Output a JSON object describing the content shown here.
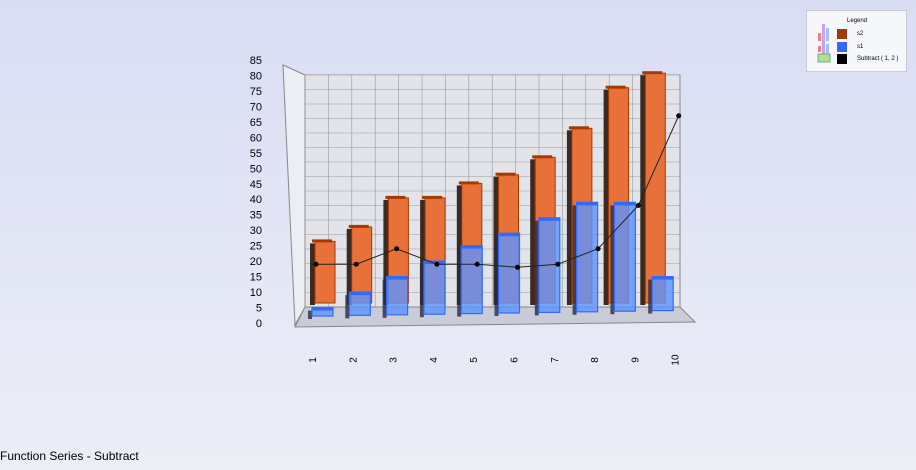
{
  "footer": "Function Series - Subtract",
  "legend": {
    "title": "Legend",
    "items": [
      {
        "label": "s2",
        "color": "#a33a00"
      },
      {
        "label": "s1",
        "color": "#2f6bff"
      },
      {
        "label": "Subtract ( 1, 2 )",
        "color": "#000000"
      }
    ]
  },
  "chart_data": {
    "type": "bar",
    "categories": [
      "1",
      "2",
      "3",
      "4",
      "5",
      "6",
      "7",
      "8",
      "9",
      "10"
    ],
    "yticks": [
      "0",
      "5",
      "10",
      "15",
      "20",
      "25",
      "30",
      "35",
      "40",
      "45",
      "50",
      "55",
      "60",
      "65",
      "70",
      "75",
      "80",
      "85"
    ],
    "ylim": [
      0,
      85
    ],
    "grid": true,
    "view": "3d",
    "legend_position": "top-right",
    "series": [
      {
        "name": "s2",
        "type": "bar",
        "color": "#e8713a",
        "values": [
          24,
          29,
          39,
          39,
          44,
          47,
          53,
          63,
          77,
          82
        ]
      },
      {
        "name": "s1",
        "type": "bar",
        "color": "#5b93ff",
        "values": [
          5,
          10,
          15,
          20,
          25,
          29,
          34,
          39,
          39,
          15
        ]
      },
      {
        "name": "Subtract ( 1, 2 )",
        "type": "line",
        "color": "#000000",
        "values": [
          19,
          19,
          24,
          19,
          19,
          18,
          19,
          24,
          38,
          67
        ]
      }
    ]
  }
}
